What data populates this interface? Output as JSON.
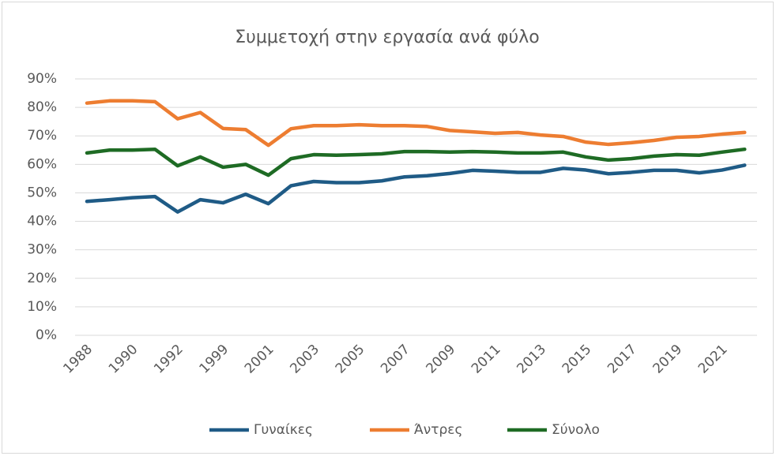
{
  "chart_data": {
    "type": "line",
    "title": "Συμμετοχή στην εργασία ανά φύλο",
    "categories": [
      "1988",
      null,
      "1990",
      null,
      "1992",
      null,
      "1999",
      null,
      "2001",
      null,
      "2003",
      null,
      "2005",
      null,
      "2007",
      null,
      "2009",
      null,
      "2011",
      null,
      "2013",
      null,
      "2015",
      null,
      "2017",
      null,
      "2019",
      null,
      "2021",
      null
    ],
    "series": [
      {
        "name": "Γυναίκες",
        "color": "#1f5b86",
        "values": [
          47,
          47.6,
          48.3,
          48.7,
          43.3,
          47.6,
          46.5,
          49.5,
          46.2,
          52.5,
          54,
          53.6,
          53.6,
          54.2,
          55.6,
          56,
          56.8,
          57.9,
          57.6,
          57.2,
          57.2,
          58.6,
          58,
          56.7,
          57.2,
          57.9,
          57.9,
          57,
          58,
          59.7
        ]
      },
      {
        "name": "Άντρες",
        "color": "#ed7d31",
        "values": [
          81.5,
          82.3,
          82.3,
          82,
          76,
          78.2,
          72.6,
          72.2,
          66.7,
          72.5,
          73.6,
          73.6,
          73.9,
          73.6,
          73.6,
          73.3,
          71.9,
          71.4,
          70.9,
          71.2,
          70.3,
          69.8,
          67.8,
          67,
          67.6,
          68.4,
          69.5,
          69.8,
          70.6,
          71.2
        ]
      },
      {
        "name": "Σύνολο",
        "color": "#1e6b24",
        "values": [
          64,
          65,
          65,
          65.3,
          59.5,
          62.6,
          59,
          60,
          56.2,
          62,
          63.4,
          63.2,
          63.4,
          63.7,
          64.5,
          64.5,
          64.3,
          64.5,
          64.3,
          64,
          64,
          64.3,
          62.6,
          61.5,
          62,
          62.9,
          63.4,
          63.2,
          64.3,
          65.3
        ]
      }
    ],
    "ylim": [
      0,
      90
    ],
    "yticks": [
      {
        "value": 0,
        "label": "0%"
      },
      {
        "value": 10,
        "label": "10%"
      },
      {
        "value": 20,
        "label": "20%"
      },
      {
        "value": 30,
        "label": "30%"
      },
      {
        "value": 40,
        "label": "40%"
      },
      {
        "value": 50,
        "label": "50%"
      },
      {
        "value": 60,
        "label": "60%"
      },
      {
        "value": 70,
        "label": "70%"
      },
      {
        "value": 80,
        "label": "80%"
      },
      {
        "value": 90,
        "label": "90%"
      }
    ],
    "grid": true,
    "legend": "bottom"
  }
}
